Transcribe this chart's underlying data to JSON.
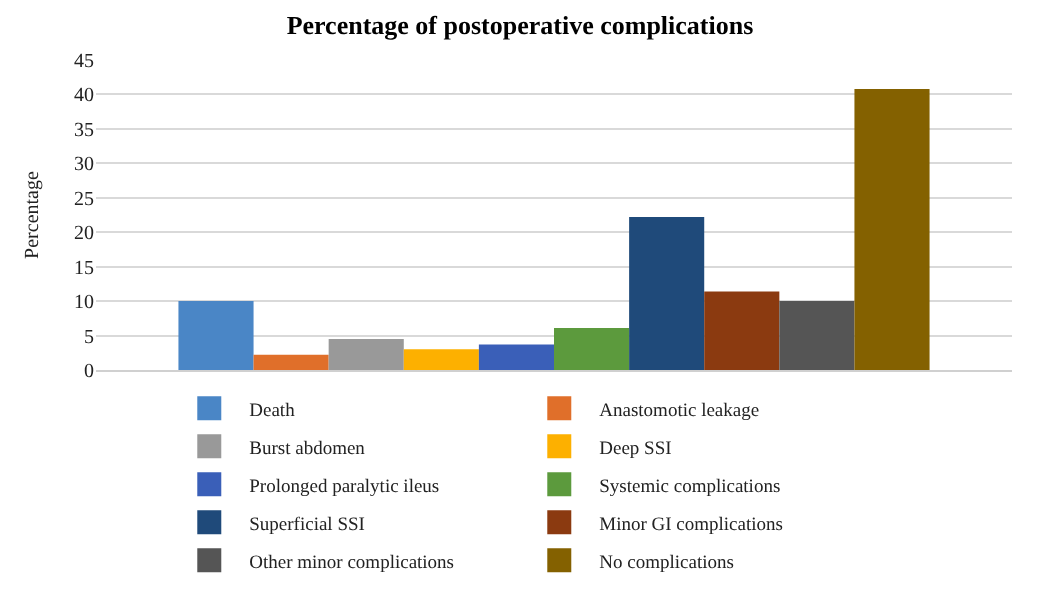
{
  "chart_data": {
    "type": "bar",
    "title": "Percentage of postoperative complications",
    "ylabel": "Percentage",
    "categories": [
      null
    ],
    "series": [
      {
        "name": "Death",
        "color": "#4a86c6",
        "values": [
          10
        ]
      },
      {
        "name": "Anastomotic leakage",
        "color": "#e06f2a",
        "values": [
          2.2
        ]
      },
      {
        "name": "Burst abdomen",
        "color": "#999999",
        "values": [
          4.5
        ]
      },
      {
        "name": "Deep SSI",
        "color": "#fdb000",
        "values": [
          3.0
        ]
      },
      {
        "name": "Prolonged paralytic ileus",
        "color": "#3a5fb8",
        "values": [
          3.7
        ]
      },
      {
        "name": "Systemic complications",
        "color": "#5c9a3d",
        "values": [
          6.1
        ]
      },
      {
        "name": "Superficial SSI",
        "color": "#1f4a7a",
        "values": [
          22.2
        ]
      },
      {
        "name": "Minor GI complications",
        "color": "#8b3a10",
        "values": [
          11.4
        ]
      },
      {
        "name": "Other minor complications",
        "color": "#555555",
        "values": [
          10
        ]
      },
      {
        "name": "No complications",
        "color": "#846100",
        "values": [
          40.8
        ]
      }
    ],
    "ylim": [
      0,
      45
    ],
    "yticks": [
      0,
      5,
      10,
      15,
      20,
      25,
      30,
      35,
      40,
      45
    ],
    "grid": "y",
    "legend": "bottom"
  }
}
